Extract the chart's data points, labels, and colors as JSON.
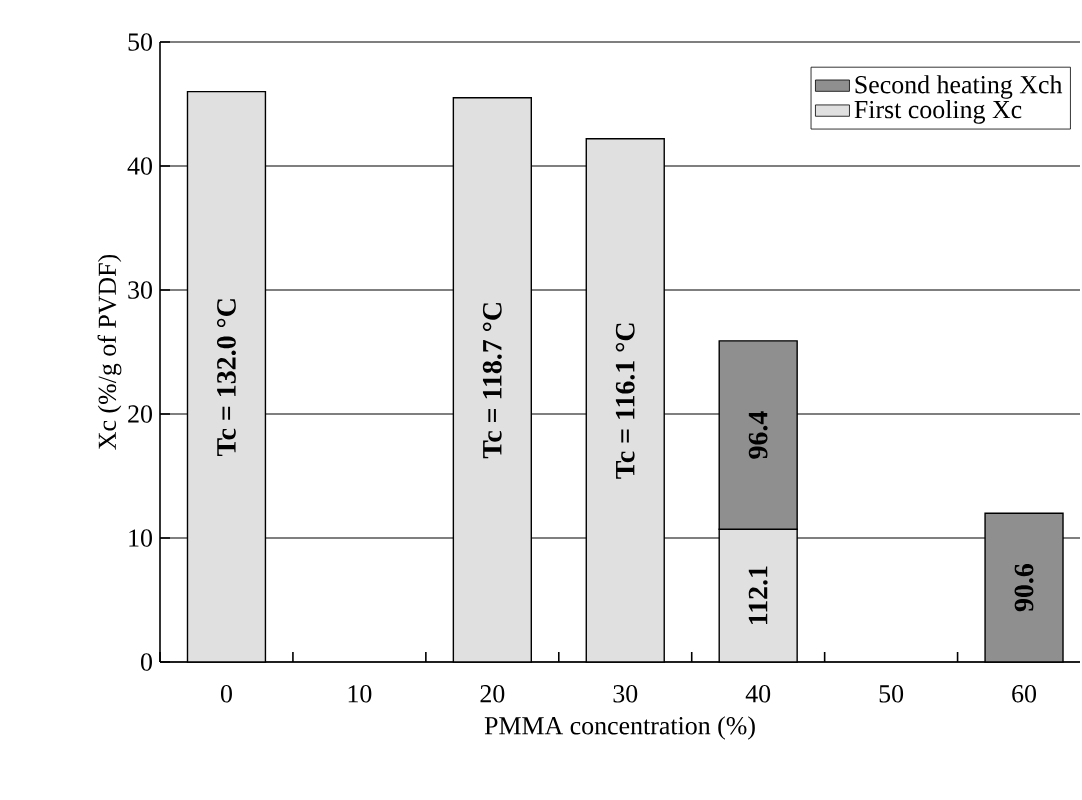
{
  "chart_data": {
    "type": "bar",
    "stacked": true,
    "xlabel": "PMMA concentration (%)",
    "ylabel": "Xc (%/g of PVDF)",
    "categories": [
      "0",
      "10",
      "20",
      "30",
      "40",
      "50",
      "60"
    ],
    "series": [
      {
        "name": "First cooling Xc",
        "color": "#e0e0e0",
        "values": [
          46,
          null,
          45.5,
          42.2,
          10.7,
          null,
          null
        ]
      },
      {
        "name": "Second heating Xch",
        "color": "#8f8f8f",
        "values": [
          null,
          null,
          null,
          null,
          15.2,
          null,
          12
        ]
      }
    ],
    "ylim": [
      0,
      50
    ],
    "yticks": [
      0,
      10,
      20,
      30,
      40,
      50
    ],
    "grid": "y",
    "legend": "top right",
    "annotations": [
      "Tc = 132.0 °C",
      "Tc = 118.7 °C",
      "Tc = 116.1 °C",
      "112.1",
      "96.4",
      "90.6"
    ]
  }
}
